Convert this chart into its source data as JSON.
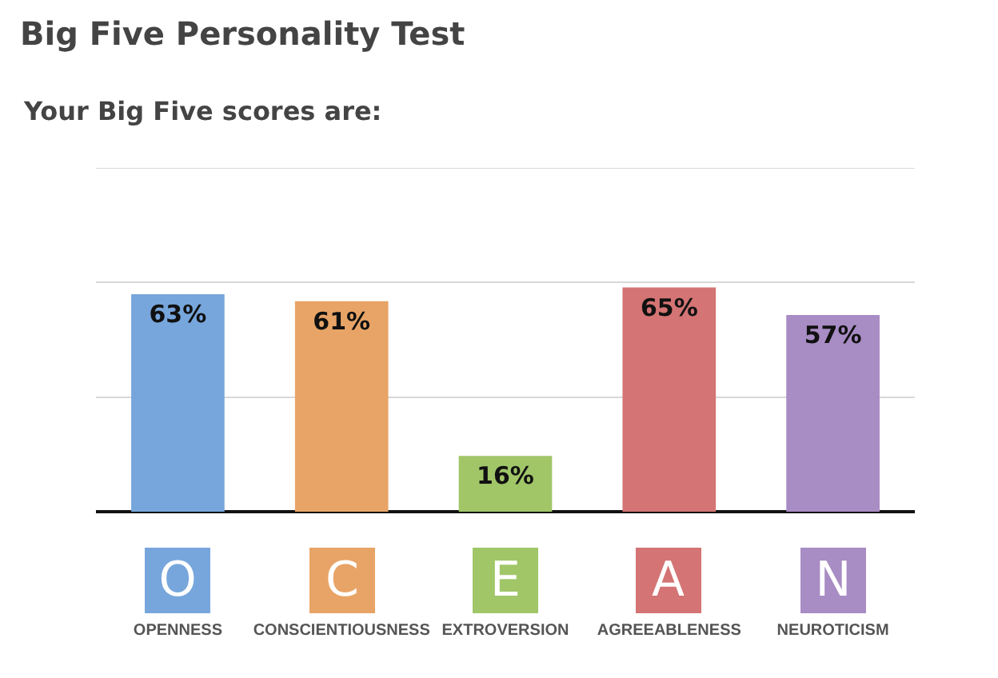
{
  "chart_data": {
    "type": "bar",
    "title": "Big Five Personality Test",
    "subtitle": "Your Big Five scores are:",
    "categories": [
      "OPENNESS",
      "CONSCIENTIOUSNESS",
      "EXTROVERSION",
      "AGREEABLENESS",
      "NEUROTICISM"
    ],
    "values": [
      63,
      61,
      16,
      65,
      57
    ],
    "colors": [
      "#77a6dc",
      "#e8a466",
      "#a0c668",
      "#d47474",
      "#a88cc4"
    ],
    "value_labels": [
      "63%",
      "61%",
      "16%",
      "65%",
      "57%"
    ],
    "annotations": [
      "O",
      "C",
      "E",
      "A",
      "N"
    ],
    "ylim": [
      0,
      100
    ],
    "yticks": [
      {
        "value": 33.33,
        "label": null
      },
      {
        "value": 66.67,
        "label": null
      },
      {
        "value": 100,
        "label": null
      }
    ],
    "grid": "y",
    "tick_labels": "x",
    "legend": false
  }
}
